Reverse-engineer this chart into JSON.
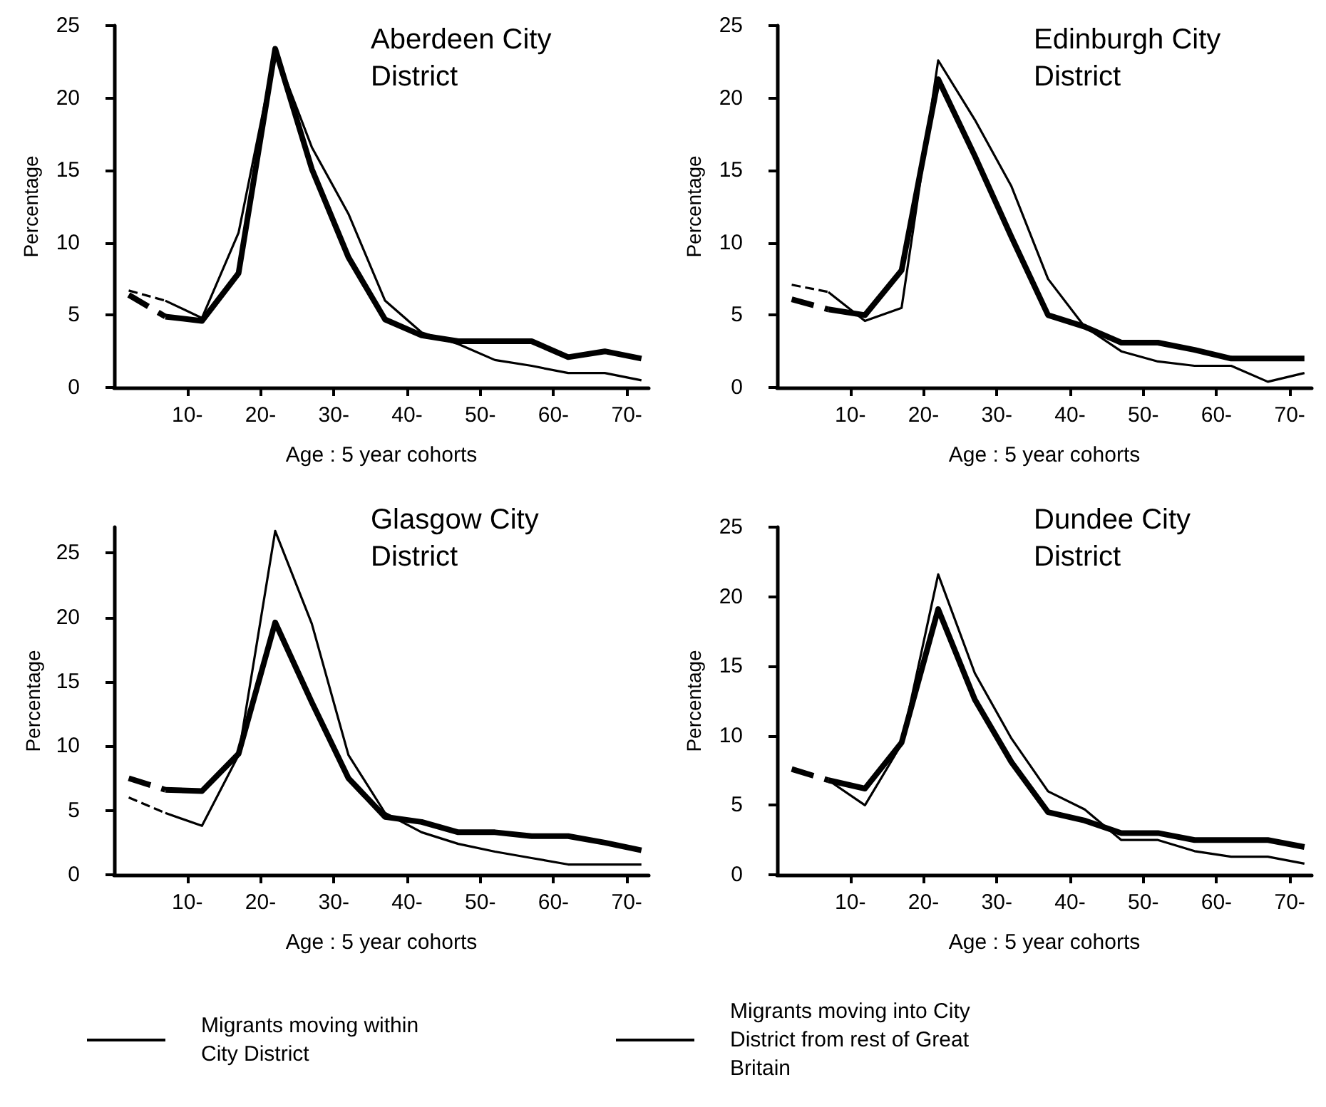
{
  "chart_data": [
    {
      "type": "line",
      "title": "Aberdeen City District",
      "xlabel": "Age : 5 year cohorts",
      "ylabel": "Percentage",
      "xlim": [
        0,
        73
      ],
      "ylim": [
        0,
        25
      ],
      "yticks": [
        0,
        5,
        10,
        15,
        20,
        25
      ],
      "xticks": [
        {
          "value": 10,
          "label": "10-"
        },
        {
          "value": 20,
          "label": "20-"
        },
        {
          "value": 30,
          "label": "30-"
        },
        {
          "value": 40,
          "label": "40-"
        },
        {
          "value": 50,
          "label": "50-"
        },
        {
          "value": 60,
          "label": "60-"
        },
        {
          "value": 70,
          "label": "70-"
        }
      ],
      "grid": false,
      "marker": "none",
      "series": [
        {
          "color": "#000000",
          "line_style": "solid",
          "x": [
            7,
            12,
            17,
            22,
            27,
            32,
            37,
            42,
            47,
            52,
            57,
            62,
            67,
            72
          ],
          "values": [
            4.9,
            4.6,
            7.9,
            23.4,
            15.1,
            9.0,
            4.7,
            3.6,
            3.2,
            3.2,
            3.2,
            2.1,
            2.5,
            2.0
          ]
        },
        {
          "color": "#000000",
          "line_style": "solid",
          "x": [
            7,
            12,
            17,
            22,
            27,
            32,
            37,
            42,
            47,
            52,
            57,
            62,
            67,
            72
          ],
          "values": [
            6.0,
            4.8,
            10.7,
            23.2,
            16.6,
            12.0,
            6.0,
            3.8,
            3.0,
            1.9,
            1.5,
            1.0,
            1.0,
            0.5
          ]
        },
        {
          "color": "#000000",
          "line_style": "dashed",
          "x": [
            2,
            7
          ],
          "values": [
            6.4,
            4.9
          ]
        },
        {
          "color": "#000000",
          "line_style": "dashed",
          "x": [
            2,
            7
          ],
          "values": [
            6.7,
            6.0
          ]
        }
      ]
    },
    {
      "type": "line",
      "title": "Edinburgh City District",
      "xlabel": "Age : 5 year cohorts",
      "ylabel": "Percentage",
      "xlim": [
        0,
        73
      ],
      "ylim": [
        0,
        25
      ],
      "yticks": [
        0,
        5,
        10,
        15,
        20,
        25
      ],
      "xticks": [
        {
          "value": 10,
          "label": "10-"
        },
        {
          "value": 20,
          "label": "20-"
        },
        {
          "value": 30,
          "label": "30-"
        },
        {
          "value": 40,
          "label": "40-"
        },
        {
          "value": 50,
          "label": "50-"
        },
        {
          "value": 60,
          "label": "60-"
        },
        {
          "value": 70,
          "label": "70-"
        }
      ],
      "grid": false,
      "marker": "none",
      "series": [
        {
          "color": "#000000",
          "line_style": "solid",
          "x": [
            7,
            12,
            17,
            22,
            27,
            32,
            37,
            42,
            47,
            52,
            57,
            62,
            67,
            72
          ],
          "values": [
            5.4,
            5.0,
            8.1,
            21.3,
            16.0,
            10.4,
            5.0,
            4.2,
            3.1,
            3.1,
            2.6,
            2.0,
            2.0,
            2.0
          ]
        },
        {
          "color": "#000000",
          "line_style": "solid",
          "x": [
            7,
            12,
            17,
            22,
            27,
            32,
            37,
            42,
            47,
            52,
            57,
            62,
            67,
            72
          ],
          "values": [
            6.6,
            4.6,
            5.5,
            22.6,
            18.5,
            13.9,
            7.5,
            4.2,
            2.5,
            1.8,
            1.5,
            1.5,
            0.4,
            1.0
          ]
        },
        {
          "color": "#000000",
          "line_style": "dashed",
          "x": [
            2,
            7
          ],
          "values": [
            6.1,
            5.4
          ]
        },
        {
          "color": "#000000",
          "line_style": "dashed",
          "x": [
            2,
            7
          ],
          "values": [
            7.1,
            6.6
          ]
        }
      ]
    },
    {
      "type": "line",
      "title": "Glasgow City District",
      "xlabel": "Age : 5 year cohorts",
      "ylabel": "Percentage",
      "xlim": [
        0,
        73
      ],
      "ylim": [
        0,
        27
      ],
      "yticks": [
        0,
        5,
        10,
        15,
        20,
        25
      ],
      "xticks": [
        {
          "value": 10,
          "label": "10-"
        },
        {
          "value": 20,
          "label": "20-"
        },
        {
          "value": 30,
          "label": "30-"
        },
        {
          "value": 40,
          "label": "40-"
        },
        {
          "value": 50,
          "label": "50-"
        },
        {
          "value": 60,
          "label": "60-"
        },
        {
          "value": 70,
          "label": "70-"
        }
      ],
      "grid": false,
      "marker": "none",
      "legend": "bottom",
      "series": [
        {
          "name": "Migrants moving within City District",
          "color": "#000000",
          "line_style": "solid",
          "x": [
            7,
            12,
            17,
            22,
            27,
            32,
            37,
            42,
            47,
            52,
            57,
            62,
            67,
            72
          ],
          "values": [
            6.6,
            6.5,
            9.4,
            19.6,
            13.4,
            7.5,
            4.5,
            4.1,
            3.3,
            3.3,
            3.0,
            3.0,
            2.5,
            1.9
          ]
        },
        {
          "name": "Migrants moving into City District from rest of Great Britain",
          "color": "#000000",
          "line_style": "solid",
          "x": [
            7,
            12,
            17,
            22,
            27,
            32,
            37,
            42,
            47,
            52,
            57,
            62,
            67,
            72
          ],
          "values": [
            4.8,
            3.8,
            9.3,
            26.7,
            19.5,
            9.3,
            4.8,
            3.3,
            2.4,
            1.8,
            1.3,
            0.8,
            0.8,
            0.8
          ]
        },
        {
          "color": "#000000",
          "line_style": "dashed",
          "x": [
            2,
            7
          ],
          "values": [
            7.5,
            6.6
          ]
        },
        {
          "color": "#000000",
          "line_style": "dashed",
          "x": [
            2,
            7
          ],
          "values": [
            6.0,
            4.8
          ]
        }
      ]
    },
    {
      "type": "line",
      "title": "Dundee City District",
      "xlabel": "Age : 5 year cohorts",
      "ylabel": "Percentage",
      "xlim": [
        0,
        73
      ],
      "ylim": [
        0,
        25
      ],
      "yticks": [
        0,
        5,
        10,
        15,
        20,
        25
      ],
      "xticks": [
        {
          "value": 10,
          "label": "10-"
        },
        {
          "value": 20,
          "label": "20-"
        },
        {
          "value": 30,
          "label": "30-"
        },
        {
          "value": 40,
          "label": "40-"
        },
        {
          "value": 50,
          "label": "50-"
        },
        {
          "value": 60,
          "label": "60-"
        },
        {
          "value": 70,
          "label": "70-"
        }
      ],
      "grid": false,
      "marker": "none",
      "series": [
        {
          "color": "#000000",
          "line_style": "solid",
          "x": [
            7,
            12,
            17,
            22,
            27,
            32,
            37,
            42,
            47,
            52,
            57,
            62,
            67,
            72
          ],
          "values": [
            6.8,
            6.2,
            9.5,
            19.1,
            12.6,
            8.1,
            4.5,
            3.9,
            3.0,
            3.0,
            2.5,
            2.5,
            2.5,
            2.0
          ]
        },
        {
          "color": "#000000",
          "line_style": "solid",
          "x": [
            7,
            12,
            17,
            22,
            27,
            32,
            37,
            42,
            47,
            52,
            57,
            62,
            67,
            72
          ],
          "values": [
            6.8,
            5.0,
            9.4,
            21.6,
            14.5,
            9.8,
            6.0,
            4.7,
            2.5,
            2.5,
            1.7,
            1.3,
            1.3,
            0.8
          ]
        },
        {
          "color": "#000000",
          "line_style": "dashed",
          "x": [
            2,
            7
          ],
          "values": [
            7.6,
            6.8
          ]
        }
      ]
    }
  ]
}
